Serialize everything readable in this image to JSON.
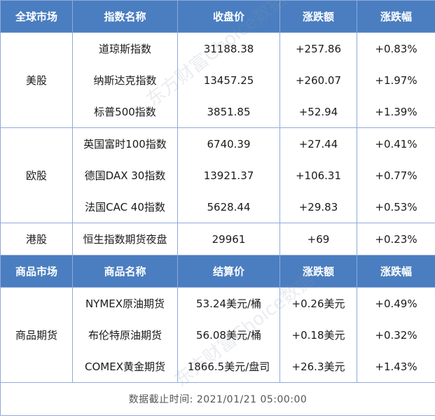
{
  "headers": {
    "global": [
      "全球市场",
      "指数名称",
      "收盘价",
      "涨跌额",
      "涨跌幅"
    ],
    "commodity": [
      "商品市场",
      "商品名称",
      "结算价",
      "涨跌额",
      "涨跌幅"
    ]
  },
  "groups": [
    {
      "market": "美股",
      "rows": [
        [
          "道琼斯指数",
          "31188.38",
          "+257.86",
          "+0.83%"
        ],
        [
          "纳斯达克指数",
          "13457.25",
          "+260.07",
          "+1.97%"
        ],
        [
          "标普500指数",
          "3851.85",
          "+52.94",
          "+1.39%"
        ]
      ]
    },
    {
      "market": "欧股",
      "rows": [
        [
          "英国富时100指数",
          "6740.39",
          "+27.44",
          "+0.41%"
        ],
        [
          "德国DAX 30指数",
          "13921.37",
          "+106.31",
          "+0.77%"
        ],
        [
          "法国CAC 40指数",
          "5628.44",
          "+29.83",
          "+0.53%"
        ]
      ]
    },
    {
      "market": "港股",
      "rows": [
        [
          "恒生指数期货夜盘",
          "29961",
          "+69",
          "+0.23%"
        ]
      ]
    }
  ],
  "commodities": {
    "market": "商品期货",
    "rows": [
      [
        "NYMEX原油期货",
        "53.24美元/桶",
        "+0.26美元",
        "+0.49%"
      ],
      [
        "布伦特原油期货",
        "56.08美元/桶",
        "+0.18美元",
        "+0.32%"
      ],
      [
        "COMEX黄金期货",
        "1866.5美元/盘司",
        "+26.3美元",
        "+1.43%"
      ]
    ]
  },
  "footer": "数据截止时间: 2021/01/21  05:00:00",
  "watermark": "东方财富Choice数据",
  "colors": {
    "header_bg": "#4a7ec0",
    "border": "#8eaadc"
  }
}
